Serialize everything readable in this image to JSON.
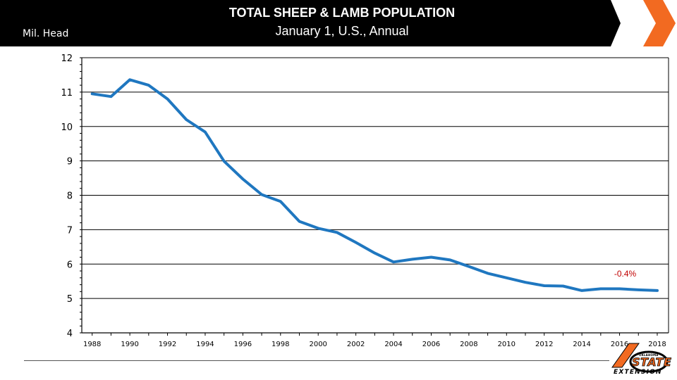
{
  "chart_data": {
    "type": "line",
    "title": "TOTAL SHEEP & LAMB POPULATION",
    "subtitle": "January 1, U.S., Annual",
    "ylabel": "Mil. Head",
    "xlabel": "",
    "ylim": [
      4,
      12
    ],
    "y_ticks": [
      "4",
      "5",
      "6",
      "7",
      "8",
      "9",
      "10",
      "11",
      "12"
    ],
    "x_ticks": [
      "1988",
      "1990",
      "1992",
      "1994",
      "1996",
      "1998",
      "2000",
      "2002",
      "2004",
      "2006",
      "2008",
      "2010",
      "2012",
      "2014",
      "2016",
      "2018"
    ],
    "grid": "horizontal",
    "legend": "none",
    "series": [
      {
        "x": [
          1988,
          1989,
          1990,
          1991,
          1992,
          1993,
          1994,
          1995,
          1996,
          1997,
          1998,
          1999,
          2000,
          2001,
          2002,
          2003,
          2004,
          2005,
          2006,
          2007,
          2008,
          2009,
          2010,
          2011,
          2012,
          2013,
          2014,
          2015,
          2016,
          2017,
          2018
        ],
        "values": [
          10.95,
          10.87,
          11.36,
          11.2,
          10.8,
          10.2,
          9.84,
          8.99,
          8.47,
          8.02,
          7.82,
          7.24,
          7.04,
          6.92,
          6.63,
          6.32,
          6.06,
          6.14,
          6.2,
          6.12,
          5.93,
          5.73,
          5.6,
          5.47,
          5.37,
          5.36,
          5.23,
          5.28,
          5.28,
          5.25,
          5.23
        ]
      }
    ],
    "annotations": [
      {
        "text": "-0.4%",
        "color": "#C00000"
      }
    ]
  },
  "colors": {
    "header_bg": "#000000",
    "accent": "#F26A21",
    "line": "#1F77C0",
    "annotation": "#C00000"
  },
  "footer": {
    "logo_name": "oklahoma-state-extension-logo",
    "logo_top": "OKLAHOMA",
    "logo_word": "STATE",
    "logo_sub": "EXTENSION"
  }
}
